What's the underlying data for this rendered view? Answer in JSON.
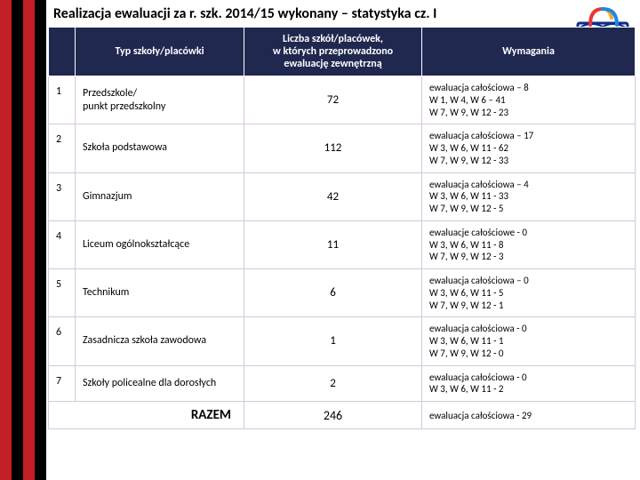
{
  "title": "Realizacja ewaluacji za r. szk. 2014/15 wykonany – statystyka cz. I",
  "stripes": [
    "#c41e26",
    "#000000",
    "#c41e26",
    "#000000"
  ],
  "logo": {
    "frame_color": "#0d2f8a",
    "pages_color": "#ffffff",
    "arcs": [
      "#e53935",
      "#f9a825",
      "#1e88e5"
    ]
  },
  "headers": {
    "col_num": "",
    "col_type": "Typ szkoły/placówki",
    "col_count": "Liczba szkół/placówek,\nw których przeprowadzono\newaluację zewnętrzną",
    "col_req": "Wymagania"
  },
  "rows": [
    {
      "n": "1",
      "type": "Przedszkole/\npunkt przedszkolny",
      "count": "72",
      "req": "ewaluacja całościowa – 8\nW 1, W 4, W 6 – 41\nW 7, W 9, W 12 - 23"
    },
    {
      "n": "2",
      "type": "Szkoła podstawowa",
      "count": "112",
      "req": "ewaluacja całościowa – 17\nW 3, W 6, W 11 - 62\nW 7, W 9, W 12 -  33"
    },
    {
      "n": "3",
      "type": "Gimnazjum",
      "count": "42",
      "req": "ewaluacja całościowa –  4\nW 3, W 6, W 11 - 33\nW 7, W 9, W 12 -  5"
    },
    {
      "n": "4",
      "type": "Liceum ogólnokształcące",
      "count": "11",
      "req": "ewaluacje całościowe - 0\nW 3, W 6, W 11 - 8\nW 7, W 9, W 12 -  3"
    },
    {
      "n": "5",
      "type": "Technikum",
      "count": "6",
      "req": "ewaluacja całościowa –  0\nW 3, W 6, W 11 - 5\nW 7, W 9, W 12 -  1"
    },
    {
      "n": "6",
      "type": "Zasadnicza szkoła zawodowa",
      "count": "1",
      "req": "ewaluacja całościowa -  0\nW 3, W 6, W 11 - 1\nW 7, W 9, W 12 -  0"
    },
    {
      "n": "7",
      "type": "Szkoły policealne dla dorosłych",
      "count": "2",
      "req": "ewaluacja całościowa -  0\nW 3, W 6, W 11 - 2"
    }
  ],
  "total": {
    "label": "RAZEM",
    "count": "246",
    "req": "ewaluacja całościowa -  29"
  }
}
